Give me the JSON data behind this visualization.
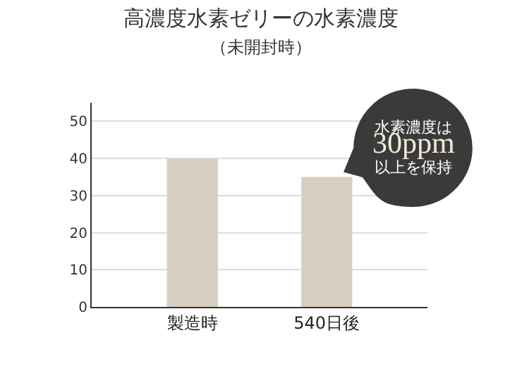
{
  "chart_data": {
    "type": "bar",
    "title": "高濃度水素ゼリーの水素濃度",
    "subtitle": "（未開封時）",
    "categories": [
      "製造時",
      "540日後"
    ],
    "values": [
      40,
      35
    ],
    "color": "#d9cfc1",
    "ylim": [
      0,
      55
    ],
    "yticks": [
      0,
      10,
      20,
      30,
      40,
      50
    ],
    "grid": "y",
    "annotations": [
      "水素濃度は\n30ppm\n以上を保持"
    ]
  }
}
